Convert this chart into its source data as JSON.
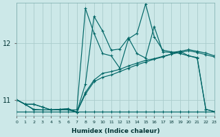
{
  "xlabel": "Humidex (Indice chaleur)",
  "bg_color": "#cce8e8",
  "line_color": "#006666",
  "grid_color": "#aacccc",
  "xlim": [
    0,
    23
  ],
  "ylim": [
    10.72,
    12.72
  ],
  "yticks": [
    11,
    12
  ],
  "xticks": [
    0,
    1,
    2,
    3,
    4,
    5,
    6,
    7,
    8,
    9,
    10,
    11,
    12,
    13,
    14,
    15,
    16,
    17,
    18,
    19,
    20,
    21,
    22,
    23
  ],
  "figsize": [
    3.2,
    2.0
  ],
  "dpi": 100,
  "series1": {
    "x": [
      0,
      1,
      2,
      3,
      4,
      5,
      6,
      7,
      8,
      9,
      10,
      11,
      12,
      13,
      14,
      15,
      16,
      17,
      18,
      19,
      20,
      21,
      22,
      23
    ],
    "y": [
      11.0,
      10.92,
      10.92,
      10.87,
      10.82,
      10.83,
      10.84,
      10.78,
      11.1,
      11.32,
      11.4,
      11.44,
      11.5,
      11.56,
      11.62,
      11.67,
      11.72,
      11.76,
      11.81,
      11.86,
      11.89,
      11.86,
      11.83,
      11.78
    ]
  },
  "series2": {
    "x": [
      0,
      1,
      2,
      3,
      4,
      5,
      6,
      7,
      8,
      9,
      10,
      11,
      12,
      13,
      14,
      15,
      16,
      17,
      18,
      19,
      20,
      21,
      22,
      23
    ],
    "y": [
      11.0,
      10.92,
      10.92,
      10.87,
      10.82,
      10.83,
      10.84,
      10.78,
      11.13,
      11.35,
      11.47,
      11.5,
      11.54,
      11.6,
      11.65,
      11.7,
      11.73,
      11.77,
      11.81,
      11.84,
      11.87,
      11.84,
      11.8,
      11.76
    ]
  },
  "series3": {
    "x": [
      0,
      1,
      2,
      3,
      4,
      5,
      6,
      7,
      8,
      9,
      10,
      11,
      12,
      13,
      14,
      15,
      16,
      17,
      18,
      19,
      20,
      21,
      22,
      23
    ],
    "y": [
      11.0,
      10.92,
      10.82,
      10.82,
      10.82,
      10.82,
      10.82,
      10.78,
      11.28,
      12.48,
      12.22,
      11.88,
      11.9,
      12.1,
      11.82,
      11.74,
      12.3,
      11.85,
      11.84,
      11.86,
      11.78,
      11.74,
      10.83,
      10.79
    ]
  },
  "series4": {
    "x": [
      0,
      1,
      2,
      3,
      4,
      5,
      6,
      7,
      8,
      9,
      10,
      11,
      12,
      13,
      14,
      15,
      16,
      17,
      18,
      19,
      20,
      21,
      22,
      23
    ],
    "y": [
      10.79,
      10.79,
      10.79,
      10.79,
      10.79,
      10.79,
      10.79,
      10.79,
      10.79,
      10.79,
      10.79,
      10.79,
      10.79,
      10.79,
      10.79,
      10.79,
      10.79,
      10.79,
      10.79,
      10.79,
      10.79,
      10.79,
      10.79,
      10.79
    ]
  },
  "series5": {
    "x": [
      0,
      2,
      3,
      4,
      5,
      6,
      7,
      8,
      9,
      10,
      11,
      12,
      13,
      14,
      15,
      16,
      17,
      18,
      19,
      20,
      21,
      22,
      23
    ],
    "y": [
      11.0,
      10.83,
      10.82,
      10.82,
      10.82,
      10.82,
      10.82,
      12.62,
      12.18,
      11.82,
      11.78,
      11.56,
      12.08,
      12.18,
      12.7,
      12.12,
      11.88,
      11.85,
      11.82,
      11.78,
      11.75,
      10.83,
      10.79
    ]
  }
}
